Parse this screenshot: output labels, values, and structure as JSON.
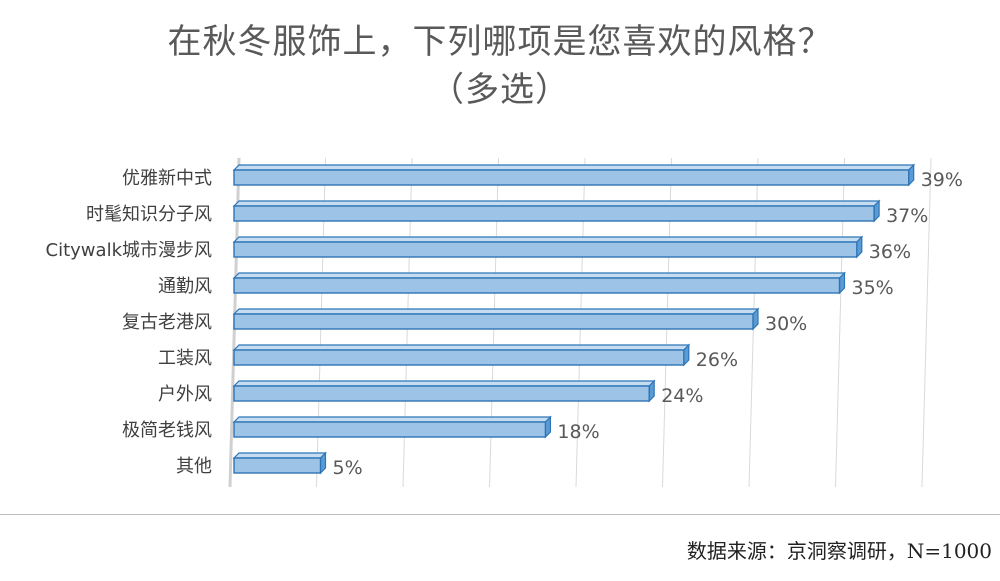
{
  "title_line1": "在秋冬服饰上，下列哪项是您喜欢的风格？",
  "title_line2": "（多选）",
  "source": "数据来源：京洞察调研，N=1000",
  "colors": {
    "bar_fill": "#9dc3e6",
    "bar_stroke": "#2e75b6",
    "bar_top": "#c5dcf1",
    "bar_side": "#5b9bd5"
  },
  "chart_data": {
    "type": "bar",
    "orientation": "horizontal",
    "categories": [
      "优雅新中式",
      "时髦知识分子风",
      "Citywalk城市漫步风",
      "通勤风",
      "复古老港风",
      "工装风",
      "户外风",
      "极简老钱风",
      "其他"
    ],
    "values": [
      39,
      37,
      36,
      35,
      30,
      26,
      24,
      18,
      5
    ],
    "value_labels": [
      "39%",
      "37%",
      "36%",
      "35%",
      "30%",
      "26%",
      "24%",
      "18%",
      "5%"
    ],
    "unit": "%",
    "xlim": [
      0,
      40
    ],
    "grid": true
  }
}
